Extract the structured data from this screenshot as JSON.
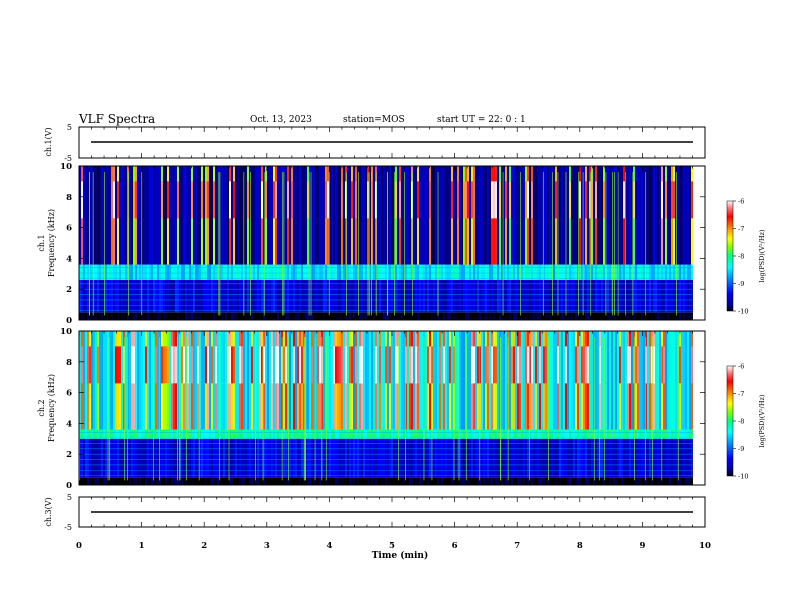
{
  "header": {
    "title": "VLF Spectra",
    "date": "Oct. 13, 2023",
    "station": "station=MOS",
    "start": "start  UT =   22: 0  : 1"
  },
  "chart_data": [
    {
      "type": "line",
      "panel": "ch1-voltage",
      "ylabel": "ch.1(V)",
      "ylim": [
        -5,
        5
      ],
      "yticks": [
        "5",
        "-5"
      ],
      "x": [
        0,
        9.8
      ],
      "y": [
        0,
        0
      ]
    },
    {
      "type": "heatmap",
      "panel": "ch1-spectrogram",
      "ylabel": "ch.1\nFrequency (kHz)",
      "ylim": [
        0,
        10
      ],
      "yticks": [
        "0",
        "2",
        "4",
        "6",
        "8",
        "10"
      ],
      "xlim": [
        0,
        9.8
      ],
      "bands_khz": [
        {
          "from": 0,
          "to": 0.5,
          "level": -10
        },
        {
          "from": 0.5,
          "to": 2.6,
          "level": -9.4
        },
        {
          "from": 2.6,
          "to": 3.6,
          "level": -8.6
        },
        {
          "from": 3.6,
          "to": 10,
          "level": -9.6
        }
      ],
      "burst_level_range": [
        -8,
        -6.3
      ]
    },
    {
      "type": "heatmap",
      "panel": "ch2-spectrogram",
      "ylabel": "ch.2\nFrequency (kHz)",
      "ylim": [
        0,
        10
      ],
      "yticks": [
        "0",
        "2",
        "4",
        "6",
        "8",
        "10"
      ],
      "xlim": [
        0,
        9.8
      ],
      "bands_khz": [
        {
          "from": 0,
          "to": 0.5,
          "level": -10
        },
        {
          "from": 0.5,
          "to": 3.0,
          "level": -9.4
        },
        {
          "from": 3.0,
          "to": 3.6,
          "level": -8.3
        },
        {
          "from": 3.6,
          "to": 10,
          "level": -8.6
        }
      ],
      "burst_level_range": [
        -7.8,
        -6.2
      ]
    },
    {
      "type": "line",
      "panel": "ch3-voltage",
      "ylabel": "ch.3(V)",
      "ylim": [
        -5,
        5
      ],
      "yticks": [
        "5",
        "-5"
      ],
      "x": [
        0,
        9.8
      ],
      "y": [
        0,
        0
      ]
    }
  ],
  "xaxis": {
    "label": "Time  (min)",
    "xlim": [
      0,
      10
    ],
    "ticks": [
      "0",
      "1",
      "2",
      "3",
      "4",
      "5",
      "6",
      "7",
      "8",
      "9",
      "10"
    ]
  },
  "colorbar": {
    "label": "log(PSD)(V²/Hz)",
    "range": [
      -10,
      -6
    ],
    "ticks": [
      "-6",
      "-7",
      "-8",
      "-9",
      "-10"
    ],
    "colors": [
      "#000000",
      "#0000a0",
      "#0000ff",
      "#0080ff",
      "#00ffff",
      "#00ff80",
      "#80ff00",
      "#ffff00",
      "#ff8000",
      "#ff0000",
      "#ff8080",
      "#ffffff"
    ]
  }
}
